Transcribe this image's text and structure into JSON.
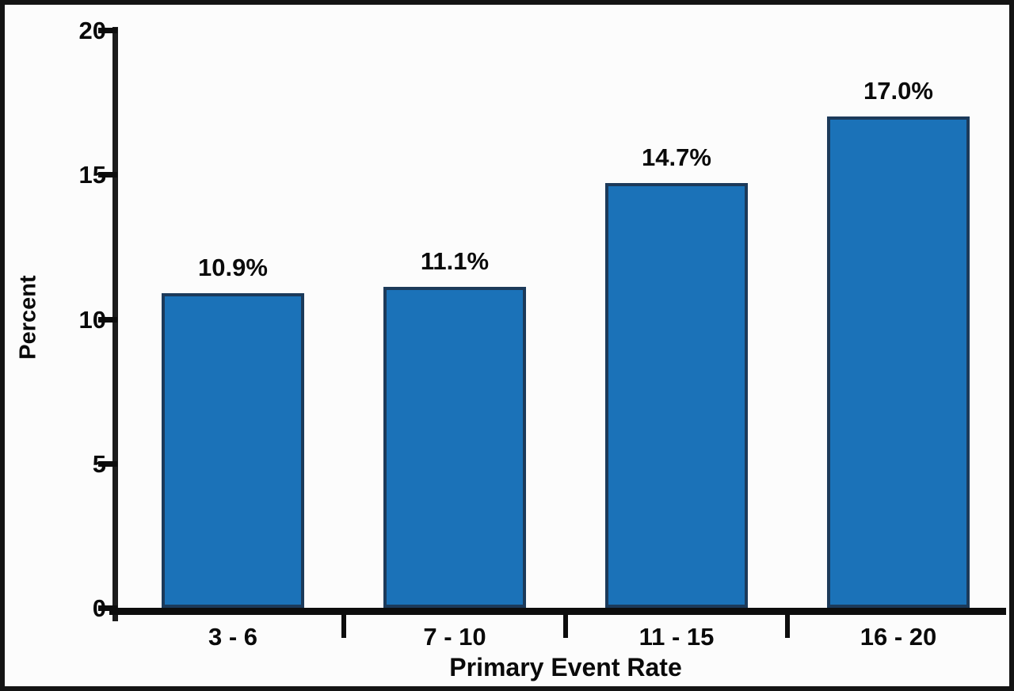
{
  "chart_data": {
    "type": "bar",
    "categories": [
      "3 - 6",
      "7 - 10",
      "11 - 15",
      "16 - 20"
    ],
    "values": [
      10.9,
      11.1,
      14.7,
      17.0
    ],
    "bar_labels": [
      "10.9%",
      "11.1%",
      "14.7%",
      "17.0%"
    ],
    "xlabel": "Primary Event Rate",
    "ylabel": "Percent",
    "ylim": [
      0,
      20
    ],
    "yticks": [
      0,
      5,
      10,
      15,
      20
    ],
    "grid": false,
    "legend": false,
    "colors": {
      "bar_fill": "#1b72b8",
      "bar_border": "#1c3a5a",
      "axis": "#0d0d0d",
      "text": "#0a0a0a",
      "background": "#fcfcfc",
      "frame_border": "#141414"
    }
  }
}
